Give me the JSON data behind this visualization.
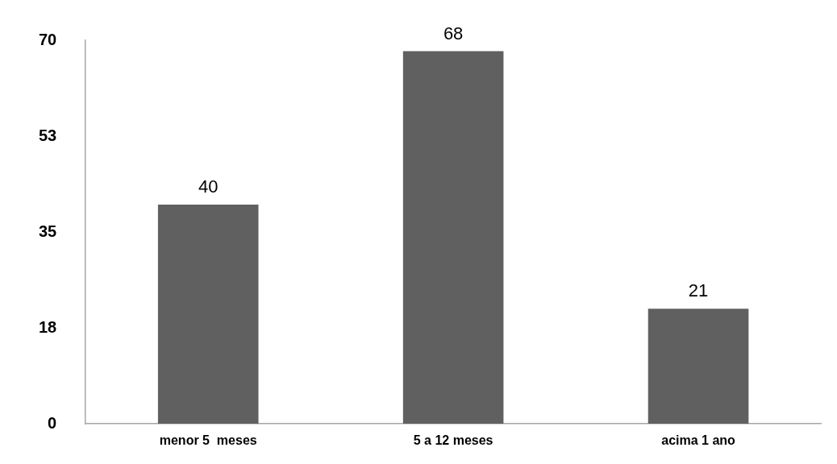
{
  "chart_data": {
    "type": "bar",
    "categories": [
      "menor 5  meses",
      "5 a 12 meses",
      "acima 1 ano"
    ],
    "values": [
      40,
      68,
      21
    ],
    "color": "#606060",
    "ylim": [
      0,
      70
    ],
    "yticks": [
      0,
      {
        "value": 17.5,
        "label": "18"
      },
      35,
      {
        "value": 52.5,
        "label": "53"
      },
      70
    ],
    "data_labels": true,
    "legend": false
  }
}
